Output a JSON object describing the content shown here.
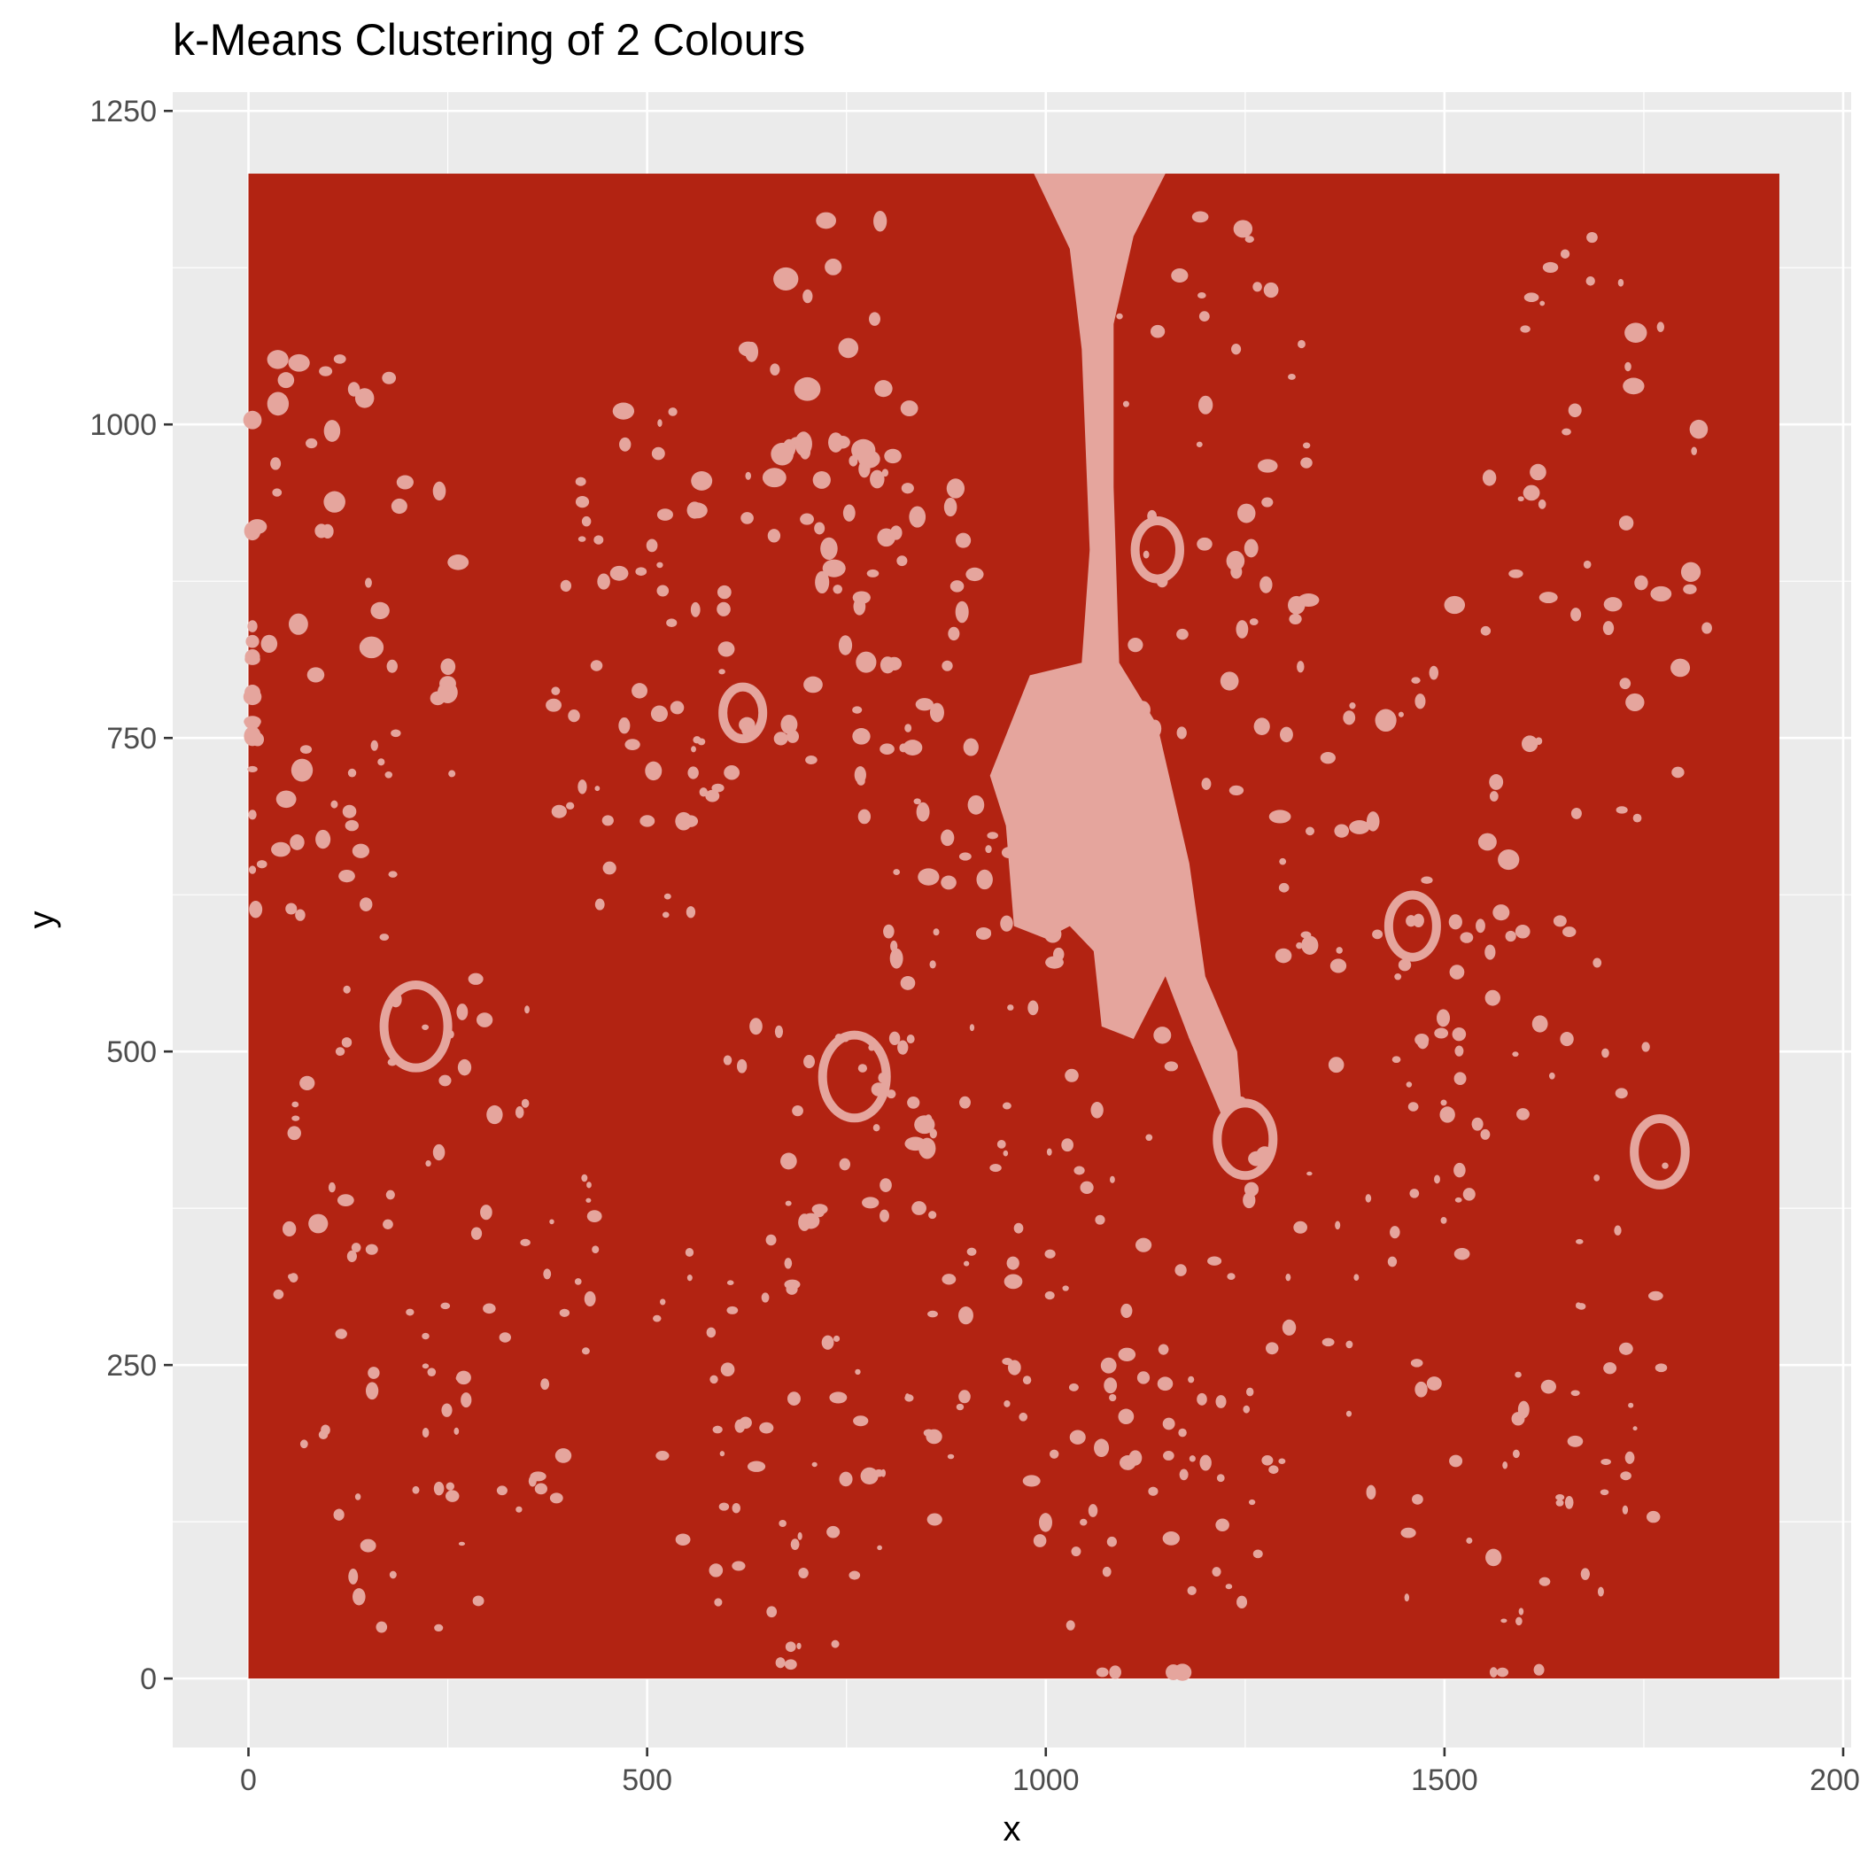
{
  "chart_data": {
    "type": "scatter",
    "title": "k-Means Clustering of 2 Colours",
    "xlabel": "x",
    "ylabel": "y",
    "xlim": [
      -95,
      2010
    ],
    "ylim": [
      -55,
      1265
    ],
    "x_ticks": [
      0,
      500,
      1000,
      1500,
      2000
    ],
    "y_ticks": [
      0,
      250,
      500,
      750,
      1000,
      1250
    ],
    "x_tick_labels": [
      "0",
      "500",
      "1000",
      "1500",
      "2000"
    ],
    "y_tick_labels": [
      "0",
      "250",
      "500",
      "750",
      "1000",
      "1250"
    ],
    "grid": true,
    "legend": "none",
    "image_extent": {
      "x": [
        0,
        1920
      ],
      "y": [
        0,
        1200
      ]
    },
    "clusters": [
      {
        "cluster": 1,
        "color": "#b22312"
      },
      {
        "cluster": 2,
        "color": "#e5a59d"
      }
    ],
    "panel_background": "#ebebeb",
    "gridline_color": "#ffffff"
  }
}
